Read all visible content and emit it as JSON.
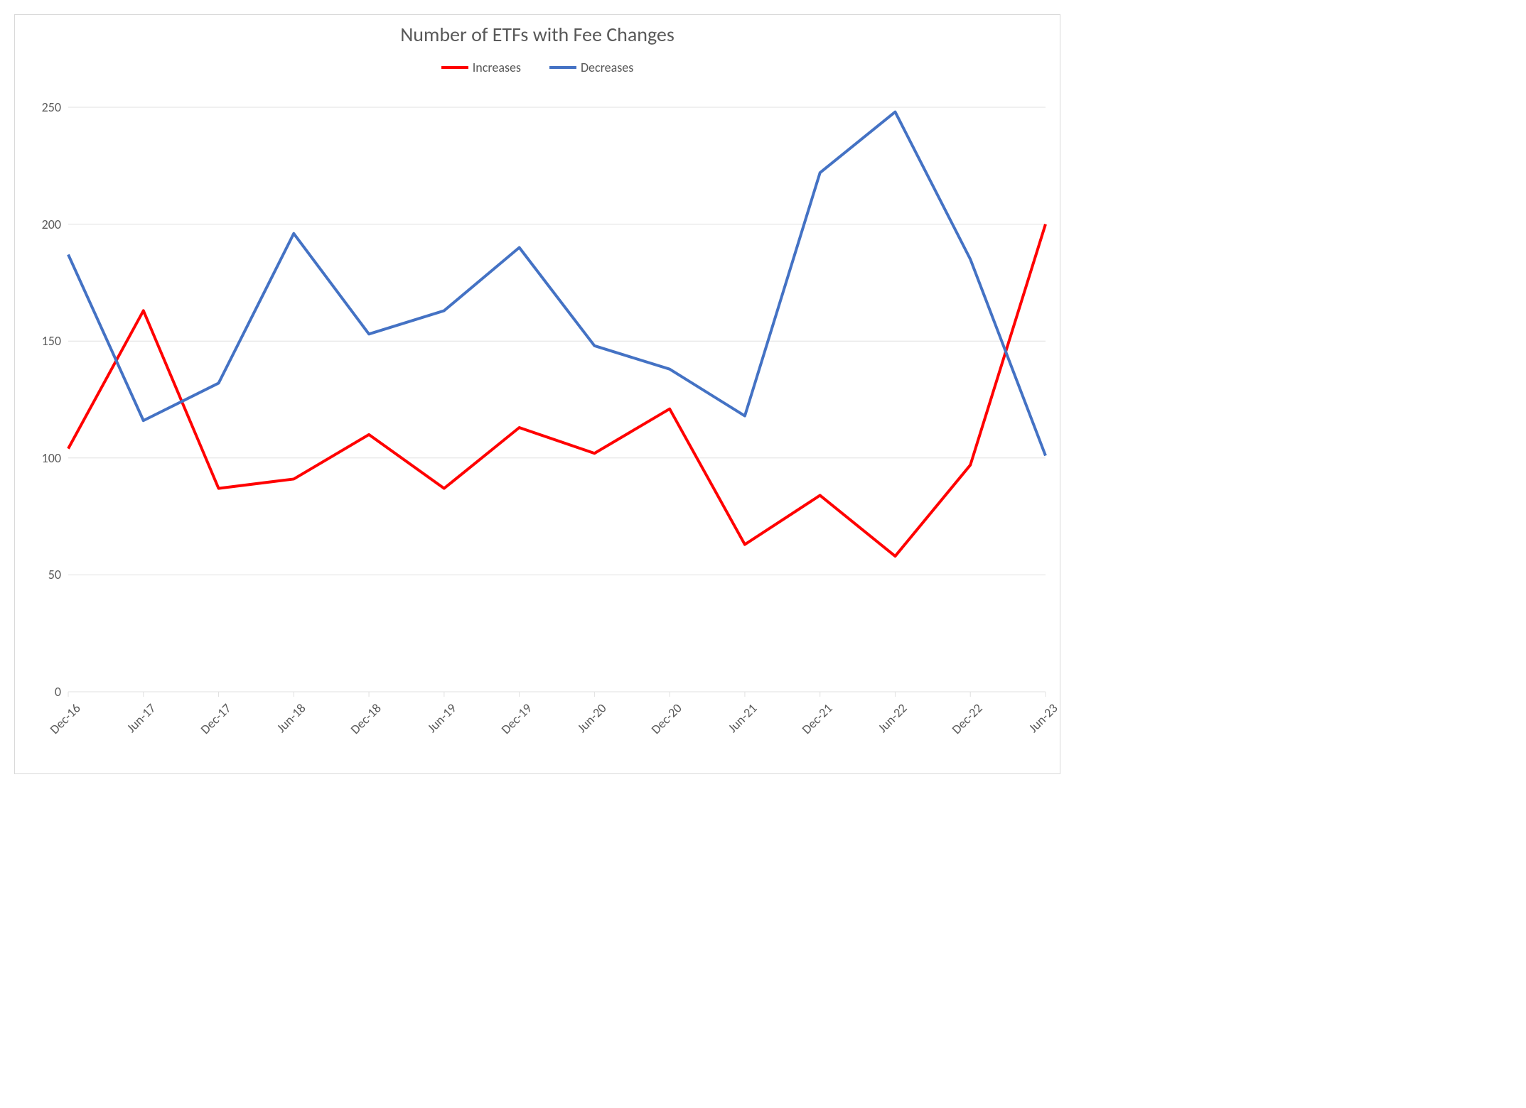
{
  "chart": {
    "type": "line",
    "title": "Number of ETFs with Fee Changes",
    "title_fontsize": 28,
    "title_color": "#595959",
    "background_color": "#ffffff",
    "border_color": "#d9d9d9",
    "grid_color": "#e0e0e0",
    "label_color": "#595959",
    "label_fontsize": 18,
    "legend_fontsize": 18,
    "categories": [
      "Dec-16",
      "Jun-17",
      "Dec-17",
      "Jun-18",
      "Dec-18",
      "Jun-19",
      "Dec-19",
      "Jun-20",
      "Dec-20",
      "Jun-21",
      "Dec-21",
      "Jun-22",
      "Dec-22",
      "Jun-23"
    ],
    "series": [
      {
        "name": "Increases",
        "color": "#ff0000",
        "line_width": 4,
        "values": [
          104,
          163,
          87,
          91,
          110,
          87,
          113,
          102,
          121,
          63,
          84,
          58,
          97,
          200
        ]
      },
      {
        "name": "Decreases",
        "color": "#4472c4",
        "line_width": 4,
        "values": [
          187,
          116,
          132,
          196,
          153,
          163,
          190,
          148,
          138,
          118,
          222,
          248,
          185,
          101
        ]
      }
    ],
    "ylim": [
      0,
      250
    ],
    "ytick_step": 50,
    "yticks": [
      0,
      50,
      100,
      150,
      200,
      250
    ]
  }
}
